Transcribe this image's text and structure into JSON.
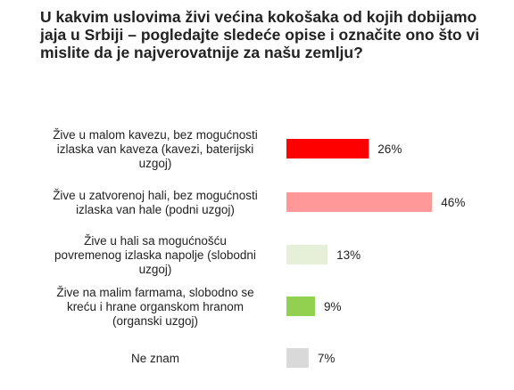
{
  "question": "U kakvim uslovima živi većina kokošaka od kojih dobijamo jaja u Srbiji – pogledajte sledeće opise i označite ono što vi mislite da je najverovatnije za našu zemlju?",
  "chart_data": {
    "type": "bar",
    "orientation": "horizontal",
    "title": "U kakvim uslovima živi većina kokošaka od kojih dobijamo jaja u Srbiji – pogledajte sledeće opise i označite ono što vi mislite da je najverovatnije za našu zemlju?",
    "categories": [
      [
        "Žive u malom kavezu, bez mogućnosti",
        "izlaska van kaveza (kavezi, baterijski",
        "uzgoj)"
      ],
      [
        "Žive u zatvorenoj hali, bez mogućnosti",
        "izlaska van hale (podni uzgoj)"
      ],
      [
        "Žive u hali sa mogućnošću",
        "povremenog izlaska napolje (slobodni",
        "uzgoj)"
      ],
      [
        "Žive na malim farmama, slobodno se",
        "kreću i hrane organskom hranom",
        "(organski uzgoj)"
      ],
      [
        "Ne znam"
      ]
    ],
    "values": [
      26,
      46,
      13,
      9,
      7
    ],
    "value_labels": [
      "26%",
      "46%",
      "13%",
      "9%",
      "7%"
    ],
    "colors": [
      "#ff0000",
      "#ff9999",
      "#e6f0d8",
      "#92d050",
      "#d9d9d9"
    ],
    "unit": "%",
    "grid": false,
    "legend": "none"
  }
}
